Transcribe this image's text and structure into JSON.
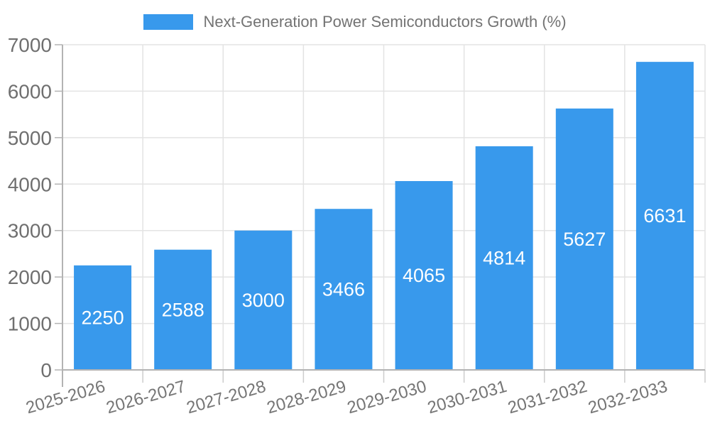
{
  "chart_data": {
    "type": "bar",
    "title": "",
    "series_name": "Next-Generation Power Semiconductors Growth (%)",
    "categories": [
      "2025-2026",
      "2026-2027",
      "2027-2028",
      "2028-2029",
      "2029-2030",
      "2030-2031",
      "2031-2032",
      "2032-2033"
    ],
    "values": [
      2250,
      2588,
      3000,
      3466,
      4065,
      4814,
      5627,
      6631
    ],
    "xlabel": "",
    "ylabel": "",
    "ylim": [
      0,
      7000
    ],
    "yticks": [
      0,
      1000,
      2000,
      3000,
      4000,
      5000,
      6000,
      7000
    ],
    "grid": true,
    "legend_position": "top",
    "value_labels_position": "center-inside",
    "x_tick_rotation_deg": -16,
    "colors": {
      "bar": "#3899ec",
      "grid": "#e3e3e3",
      "axis": "#b3b3b3",
      "tick": "#cccccc",
      "y_tick_text": "#6f6f6f",
      "x_tick_text": "#757575",
      "value_text": "#ffffff",
      "legend_text": "#737373"
    }
  }
}
